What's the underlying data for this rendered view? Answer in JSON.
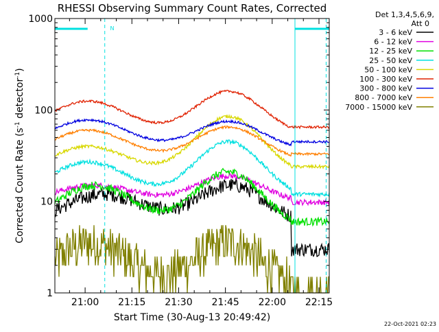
{
  "chart_data": {
    "type": "line",
    "title": "RHESSI Observing Summary Count Rates, Corrected",
    "xlabel": "Start Time (30-Aug-13 20:49:42)",
    "ylabel_main": "Corrected Count Rate (s",
    "ylabel_sup1": "-1",
    "ylabel_mid": " detector",
    "ylabel_sup2": "-1",
    "ylabel_end": ")",
    "yscale": "log",
    "ylim": [
      1,
      1000
    ],
    "xlim_min": [
      -9.7,
      78.3
    ],
    "x_unit": "minutes after 21:00",
    "x_ticks": [
      {
        "m": 0,
        "label": "21:00"
      },
      {
        "m": 15,
        "label": "21:15"
      },
      {
        "m": 30,
        "label": "21:30"
      },
      {
        "m": 45,
        "label": "21:45"
      },
      {
        "m": 60,
        "label": "22:00"
      },
      {
        "m": 75,
        "label": "22:15"
      }
    ],
    "y_ticks": [
      {
        "v": 1,
        "label": "1"
      },
      {
        "v": 10,
        "label": "10"
      },
      {
        "v": 100,
        "label": "100"
      },
      {
        "v": 1000,
        "label": "1000"
      }
    ],
    "legend_header": [
      "Det 1,3,4,5,6,9,",
      "Att 0"
    ],
    "legend_position": "right",
    "night_bars": [
      [
        -9.7,
        0.8
      ],
      [
        67.3,
        78.3
      ]
    ],
    "night_markers": [
      -9.7,
      6.3,
      67.3,
      77.3
    ],
    "saa_label": "N",
    "saa_label_x": 8.0,
    "timestamp": "22-Oct-2021 02:23",
    "series": [
      {
        "name": "3 - 6 keV",
        "color": "#000000",
        "peaks": [
          {
            "m": 6,
            "v": 12
          },
          {
            "m": 47,
            "v": 15
          }
        ],
        "base": 5.5,
        "start": 3.5,
        "end": 3.0,
        "noise": 0.18
      },
      {
        "name": "6 - 12 keV",
        "color": "#e000e0",
        "peaks": [
          {
            "m": 3,
            "v": 15
          },
          {
            "m": 46,
            "v": 19
          }
        ],
        "base": 9.5,
        "start": 9.5,
        "end": 9.8,
        "noise": 0.07
      },
      {
        "name": "12 - 25 keV",
        "color": "#00e000",
        "peaks": [
          {
            "m": 3,
            "v": 15
          },
          {
            "m": 46,
            "v": 21
          }
        ],
        "base": 4.8,
        "start": 7.5,
        "end": 6.0,
        "noise": 0.1
      },
      {
        "name": "25 - 50 keV",
        "color": "#00e0e0",
        "peaks": [
          {
            "m": 1,
            "v": 27
          },
          {
            "m": 46,
            "v": 45
          }
        ],
        "base": 10.5,
        "start": 13.5,
        "end": 12.0,
        "noise": 0.05
      },
      {
        "name": "50 - 100 keV",
        "color": "#d8d800",
        "peaks": [
          {
            "m": 1,
            "v": 40
          },
          {
            "m": 46,
            "v": 85
          }
        ],
        "base": 18.5,
        "start": 25,
        "end": 24,
        "noise": 0.04
      },
      {
        "name": "100 - 300 keV",
        "color": "#e02000",
        "peaks": [
          {
            "m": 1,
            "v": 125
          },
          {
            "m": 46,
            "v": 160
          }
        ],
        "base": 52,
        "start": 68,
        "end": 65,
        "noise": 0.03
      },
      {
        "name": "300 - 800 keV",
        "color": "#0000e0",
        "peaks": [
          {
            "m": 1,
            "v": 78
          },
          {
            "m": 46,
            "v": 75
          }
        ],
        "base": 36,
        "start": 48,
        "end": 45,
        "noise": 0.03
      },
      {
        "name": "800 - 7000 keV",
        "color": "#ff7f00",
        "peaks": [
          {
            "m": 1,
            "v": 60
          },
          {
            "m": 46,
            "v": 65
          }
        ],
        "base": 27,
        "start": 36,
        "end": 33,
        "noise": 0.03
      },
      {
        "name": "7000 - 15000 keV",
        "color": "#808000",
        "peaks": [
          {
            "m": 2,
            "v": 3.5
          },
          {
            "m": 46,
            "v": 3.5
          }
        ],
        "base": 1.0,
        "start": 1.6,
        "end": 1.0,
        "noise": 0.25
      }
    ]
  }
}
